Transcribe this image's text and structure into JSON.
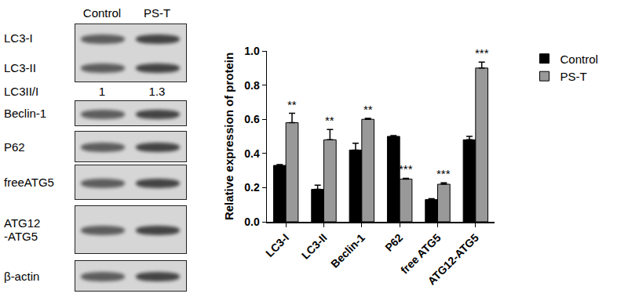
{
  "blot": {
    "columns": [
      "Control",
      "PS-T"
    ],
    "panels": [
      {
        "bands": [
          "LC3-I",
          "LC3-II"
        ]
      },
      {
        "bands": [
          "Beclin-1"
        ]
      },
      {
        "bands": [
          "P62"
        ]
      },
      {
        "bands": [
          "freeATG5"
        ]
      },
      {
        "bands": [
          "ATG12\n-ATG5"
        ]
      },
      {
        "bands": [
          "β-actin"
        ]
      }
    ],
    "ratio": {
      "label": "LC3II/I",
      "values": [
        1,
        1.3
      ]
    }
  },
  "chart_data": {
    "type": "bar",
    "categories": [
      "LC3-I",
      "LC3-II",
      "Beclin-1",
      "P62",
      "free ATG5",
      "ATG12-ATG5"
    ],
    "series": [
      {
        "name": "Control",
        "color": "#000000",
        "values": [
          0.33,
          0.19,
          0.42,
          0.5,
          0.13,
          0.48
        ],
        "errors": [
          0.005,
          0.025,
          0.04,
          0.005,
          0.005,
          0.02
        ]
      },
      {
        "name": "PS-T",
        "color": "#999999",
        "values": [
          0.58,
          0.48,
          0.6,
          0.25,
          0.22,
          0.9
        ],
        "errors": [
          0.055,
          0.06,
          0.005,
          0.005,
          0.008,
          0.035
        ],
        "significance": [
          "**",
          "**",
          "**",
          "***",
          "***",
          "***"
        ]
      }
    ],
    "y_label": "Relative expression of protein",
    "ylim": [
      0,
      1.0
    ],
    "yticks": [
      {
        "value": 0,
        "label": "0.0"
      },
      {
        "value": 0.2,
        "label": "0.2"
      },
      {
        "value": 0.4,
        "label": "0.4"
      },
      {
        "value": 0.6,
        "label": "0.6"
      },
      {
        "value": 0.8,
        "label": "0.8"
      },
      {
        "value": 1.0,
        "label": "1.0"
      }
    ],
    "grid": false,
    "legend": "top right"
  }
}
